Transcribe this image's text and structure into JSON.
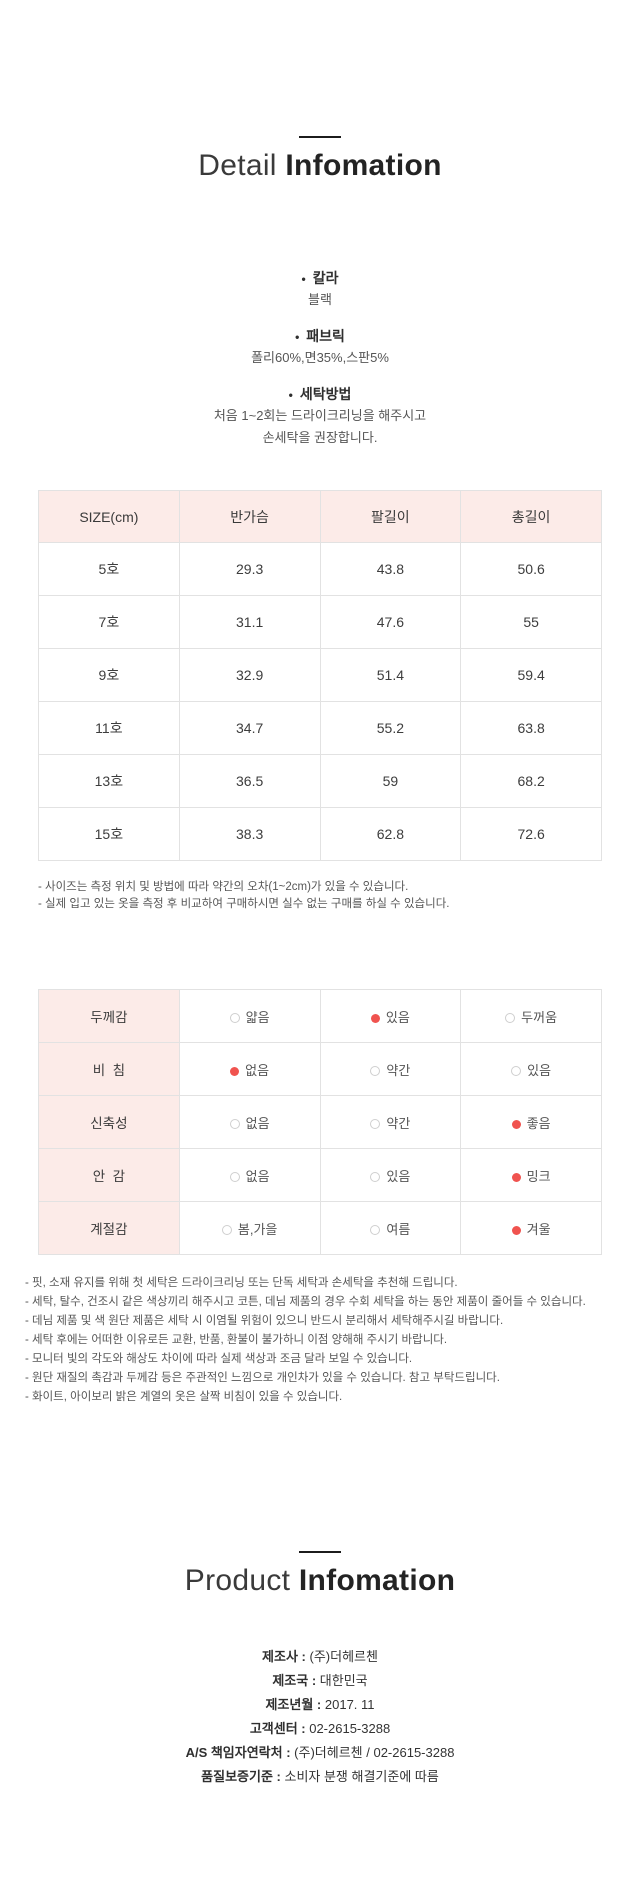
{
  "ui": {
    "bullet": "•",
    "colon": " : "
  },
  "detail": {
    "title_light": "Detail",
    "title_bold": "Infomation",
    "specs": [
      {
        "label": "칼라",
        "values": [
          "블랙"
        ]
      },
      {
        "label": "패브릭",
        "values": [
          "폴리60%,면35%,스판5%"
        ]
      },
      {
        "label": "세탁방법",
        "values": [
          "처음 1~2회는 드라이크리닝을 해주시고",
          "손세탁을 권장합니다."
        ]
      }
    ]
  },
  "size_table": {
    "headers": [
      "SIZE(cm)",
      "반가슴",
      "팔길이",
      "총길이"
    ],
    "rows": [
      [
        "5호",
        "29.3",
        "43.8",
        "50.6"
      ],
      [
        "7호",
        "31.1",
        "47.6",
        "55"
      ],
      [
        "9호",
        "32.9",
        "51.4",
        "59.4"
      ],
      [
        "11호",
        "34.7",
        "55.2",
        "63.8"
      ],
      [
        "13호",
        "36.5",
        "59",
        "68.2"
      ],
      [
        "15호",
        "38.3",
        "62.8",
        "72.6"
      ]
    ]
  },
  "size_notes": [
    "- 사이즈는 측정 위치 및 방법에 따라 약간의 오차(1~2cm)가 있을 수 있습니다.",
    "- 실제 입고 있는 옷을 측정 후 비교하여 구매하시면 실수 없는 구매를 하실 수 있습니다."
  ],
  "attr_table": {
    "rows": [
      {
        "label": "두께감",
        "options": [
          "얇음",
          "있음",
          "두꺼움"
        ],
        "selected": 1
      },
      {
        "label": "비  침",
        "options": [
          "없음",
          "약간",
          "있음"
        ],
        "selected": 0
      },
      {
        "label": "신축성",
        "options": [
          "없음",
          "약간",
          "좋음"
        ],
        "selected": 2
      },
      {
        "label": "안  감",
        "options": [
          "없음",
          "있음",
          "밍크"
        ],
        "selected": 2
      },
      {
        "label": "계절감",
        "options": [
          "봄,가을",
          "여름",
          "겨울"
        ],
        "selected": 2
      }
    ]
  },
  "care_notes": [
    "- 핏, 소재 유지를 위해 첫 세탁은 드라이크리닝 또는 단독 세탁과 손세탁을 추천해 드립니다.",
    "- 세탁, 탈수, 건조시 같은 색상끼리 해주시고 코튼, 데님 제품의 경우 수회 세탁을 하는 동안 제품이 줄어들 수 있습니다.",
    "- 데님 제품 및 색 원단 제품은 세탁 시 이염될 위험이 있으니 반드시 분리해서 세탁해주시길 바랍니다.",
    "- 세탁 후에는 어떠한 이유로든 교환, 반품, 환불이 불가하니 이점 양해해 주시기 바랍니다.",
    "- 모니터 빛의 각도와 해상도 차이에 따라 실제 색상과 조금 달라 보일 수 있습니다.",
    "- 원단 재질의 촉감과 두께감 등은 주관적인 느낌으로 개인차가 있을 수 있습니다. 참고 부탁드립니다.",
    "- 화이트, 아이보리 밝은 계열의 옷은 살짝 비침이 있을 수 있습니다."
  ],
  "product": {
    "title_light": "Product",
    "title_bold": "Infomation",
    "rows": [
      {
        "label": "제조사",
        "value": "(주)더헤르첸"
      },
      {
        "label": "제조국",
        "value": "대한민국"
      },
      {
        "label": "제조년월",
        "value": "2017. 11"
      },
      {
        "label": "고객센터",
        "value": "02-2615-3288"
      },
      {
        "label": "A/S 책임자연락처",
        "value": "(주)더헤르첸 / 02-2615-3288"
      },
      {
        "label": "품질보증기준",
        "value": "소비자 분쟁 해결기준에 따름"
      }
    ]
  },
  "colors": {
    "header_pink": "#fcebe8",
    "radio_selected": "#f0534f",
    "border": "#e2e2e2",
    "title_dark": "#232323"
  }
}
